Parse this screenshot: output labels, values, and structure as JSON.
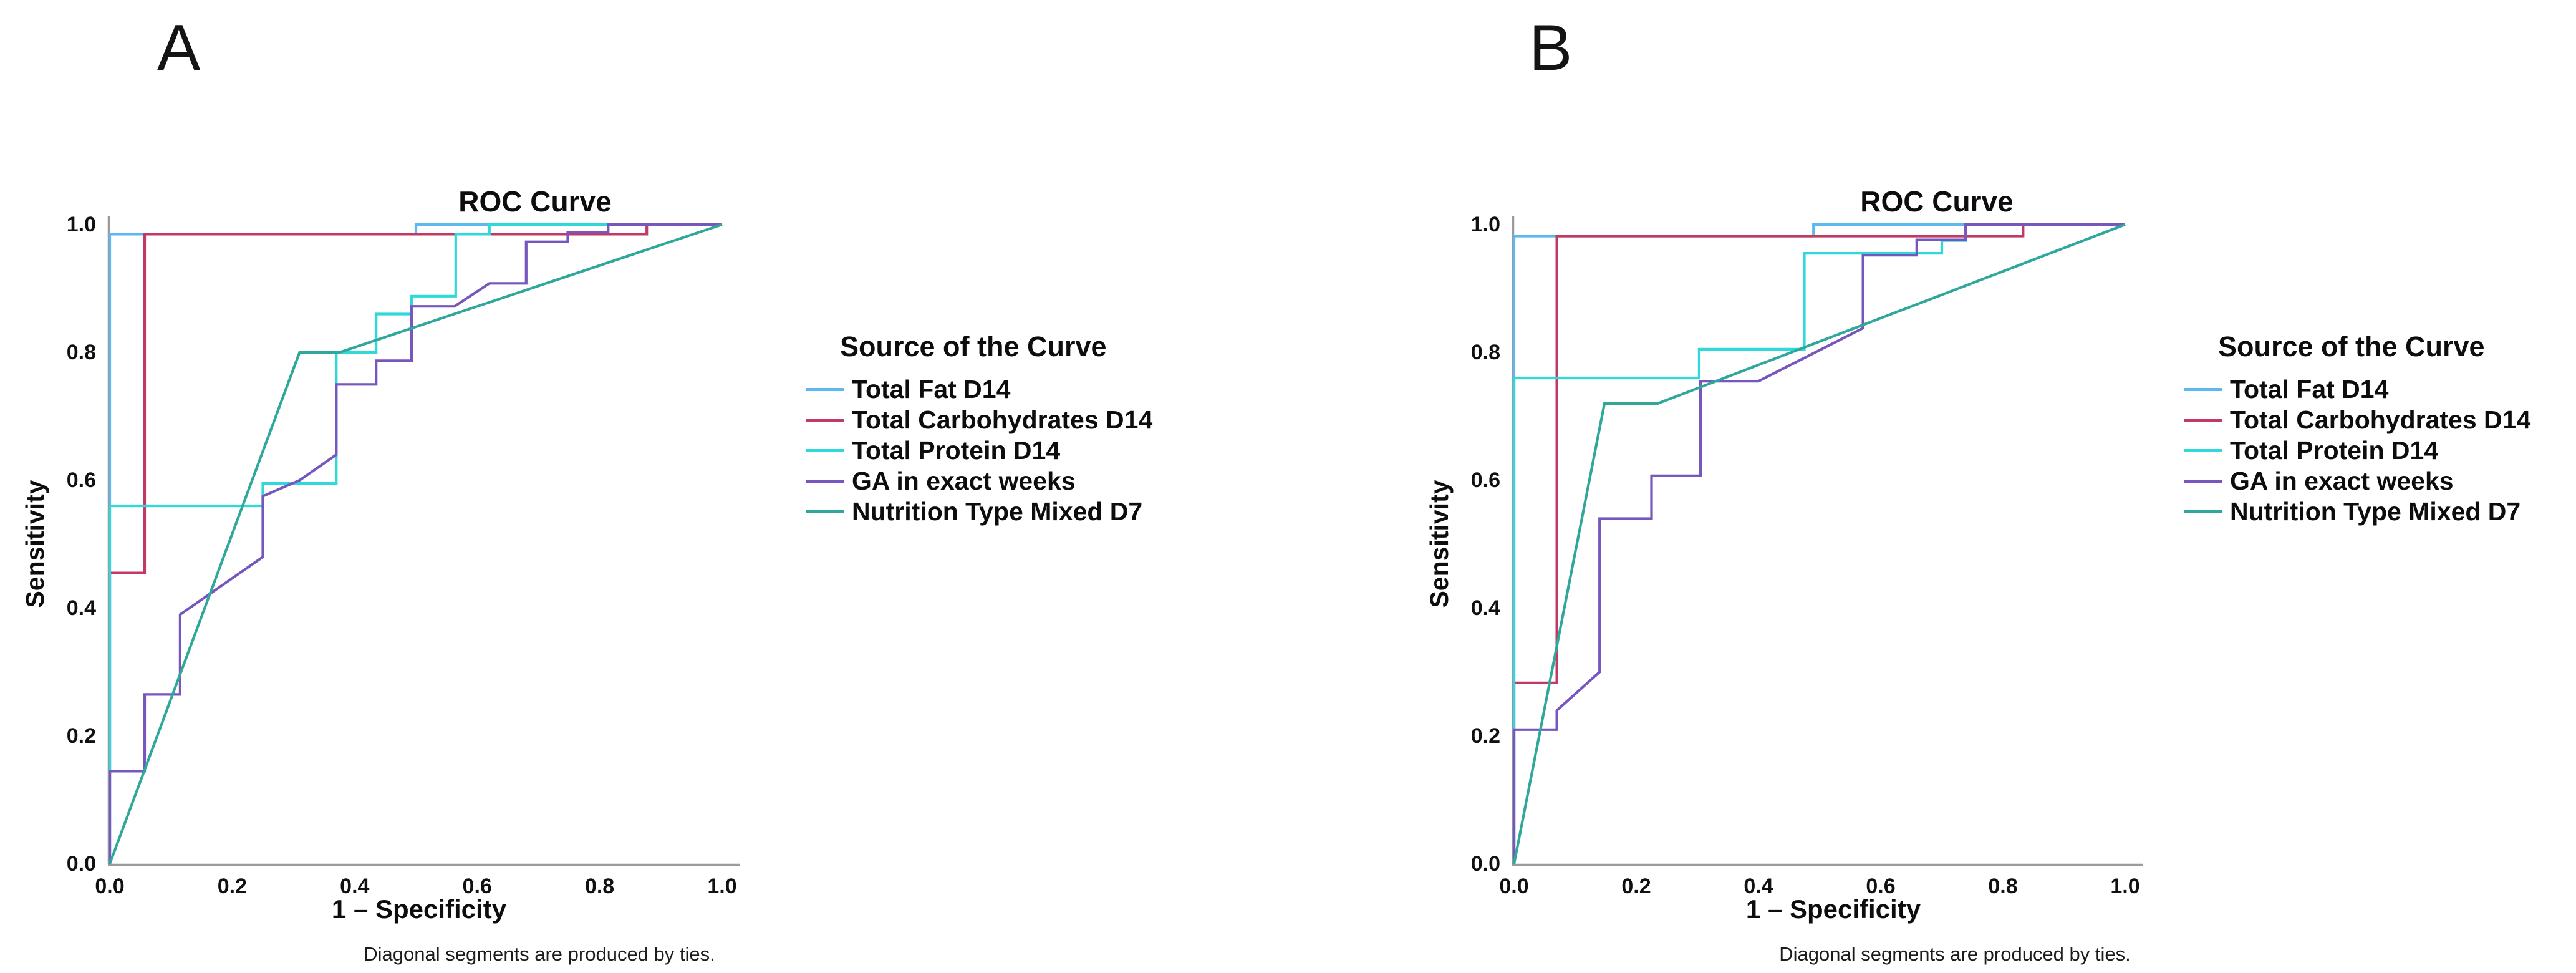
{
  "chart_data": [
    {
      "type": "line",
      "panel_label": "A",
      "title": "ROC Curve",
      "xlabel": "1 – Specificity",
      "ylabel": "Sensitivity",
      "footnote": "Diagonal segments are produced by ties.",
      "legend_title": "Source of the Curve",
      "legend_position": "right",
      "grid": false,
      "xlim": [
        0.0,
        1.0
      ],
      "ylim": [
        0.0,
        1.0
      ],
      "xticks": [
        "0.0",
        "0.2",
        "0.4",
        "0.6",
        "0.8",
        "1.0"
      ],
      "yticks": [
        "1.0",
        "0.8",
        "0.6",
        "0.4",
        "0.2",
        "0.0"
      ],
      "axis_color": "#9b9b9b",
      "series": [
        {
          "name": "Total Fat D14",
          "color": "#5cb8f0",
          "points": [
            [
              0,
              0
            ],
            [
              0,
              0.985
            ],
            [
              0.5,
              0.985
            ],
            [
              0.5,
              1
            ],
            [
              1,
              1
            ]
          ]
        },
        {
          "name": "Total Carbohydrates D14",
          "color": "#c13a64",
          "points": [
            [
              0,
              0
            ],
            [
              0,
              0.455
            ],
            [
              0.057,
              0.455
            ],
            [
              0.057,
              0.985
            ],
            [
              0.877,
              0.985
            ],
            [
              0.877,
              1
            ],
            [
              1,
              1
            ]
          ]
        },
        {
          "name": "Total Protein D14",
          "color": "#2fd9d9",
          "points": [
            [
              0,
              0
            ],
            [
              0,
              0.56
            ],
            [
              0.25,
              0.56
            ],
            [
              0.25,
              0.595
            ],
            [
              0.37,
              0.595
            ],
            [
              0.37,
              0.8
            ],
            [
              0.435,
              0.8
            ],
            [
              0.435,
              0.86
            ],
            [
              0.493,
              0.86
            ],
            [
              0.493,
              0.888
            ],
            [
              0.565,
              0.888
            ],
            [
              0.565,
              0.985
            ],
            [
              0.62,
              0.985
            ],
            [
              0.62,
              1
            ],
            [
              1,
              1
            ]
          ]
        },
        {
          "name": "GA in exact weeks",
          "color": "#7757bd",
          "points": [
            [
              0,
              0
            ],
            [
              0,
              0.145
            ],
            [
              0.057,
              0.145
            ],
            [
              0.057,
              0.265
            ],
            [
              0.115,
              0.265
            ],
            [
              0.115,
              0.39
            ],
            [
              0.25,
              0.48
            ],
            [
              0.25,
              0.575
            ],
            [
              0.31,
              0.6
            ],
            [
              0.37,
              0.64
            ],
            [
              0.37,
              0.75
            ],
            [
              0.435,
              0.75
            ],
            [
              0.435,
              0.787
            ],
            [
              0.493,
              0.787
            ],
            [
              0.493,
              0.872
            ],
            [
              0.563,
              0.872
            ],
            [
              0.62,
              0.908
            ],
            [
              0.68,
              0.908
            ],
            [
              0.68,
              0.973
            ],
            [
              0.748,
              0.973
            ],
            [
              0.748,
              0.988
            ],
            [
              0.814,
              0.988
            ],
            [
              0.814,
              1
            ],
            [
              1,
              1
            ]
          ]
        },
        {
          "name": "Nutrition Type Mixed D7",
          "color": "#2fa89b",
          "points": [
            [
              0,
              0
            ],
            [
              0.31,
              0.8
            ],
            [
              0.375,
              0.8
            ],
            [
              1,
              1
            ]
          ]
        }
      ]
    },
    {
      "type": "line",
      "panel_label": "B",
      "title": "ROC Curve",
      "xlabel": "1 – Specificity",
      "ylabel": "Sensitivity",
      "footnote": "Diagonal segments are produced by ties.",
      "legend_title": "Source of the Curve",
      "legend_position": "right",
      "grid": false,
      "xlim": [
        0.0,
        1.0
      ],
      "ylim": [
        0.0,
        1.0
      ],
      "xticks": [
        "0.0",
        "0.2",
        "0.4",
        "0.6",
        "0.8",
        "1.0"
      ],
      "yticks": [
        "1.0",
        "0.8",
        "0.6",
        "0.4",
        "0.2",
        "0.0"
      ],
      "axis_color": "#9b9b9b",
      "series": [
        {
          "name": "Total Fat D14",
          "color": "#5cb8f0",
          "points": [
            [
              0,
              0
            ],
            [
              0,
              0.982
            ],
            [
              0.49,
              0.982
            ],
            [
              0.49,
              1
            ],
            [
              1,
              1
            ]
          ]
        },
        {
          "name": "Total Carbohydrates D14",
          "color": "#c13a64",
          "points": [
            [
              0,
              0
            ],
            [
              0,
              0.283
            ],
            [
              0.07,
              0.283
            ],
            [
              0.07,
              0.982
            ],
            [
              0.833,
              0.982
            ],
            [
              0.833,
              1
            ],
            [
              1,
              1
            ]
          ]
        },
        {
          "name": "Total Protein D14",
          "color": "#2fd9d9",
          "points": [
            [
              0,
              0
            ],
            [
              0,
              0.76
            ],
            [
              0.303,
              0.76
            ],
            [
              0.303,
              0.805
            ],
            [
              0.475,
              0.805
            ],
            [
              0.475,
              0.955
            ],
            [
              0.7,
              0.955
            ],
            [
              0.7,
              0.975
            ],
            [
              0.739,
              0.975
            ],
            [
              0.739,
              1
            ],
            [
              1,
              1
            ]
          ]
        },
        {
          "name": "GA in exact weeks",
          "color": "#7757bd",
          "points": [
            [
              0,
              0
            ],
            [
              0,
              0.21
            ],
            [
              0.07,
              0.21
            ],
            [
              0.07,
              0.24
            ],
            [
              0.14,
              0.3
            ],
            [
              0.14,
              0.54
            ],
            [
              0.225,
              0.54
            ],
            [
              0.225,
              0.607
            ],
            [
              0.305,
              0.607
            ],
            [
              0.305,
              0.755
            ],
            [
              0.4,
              0.755
            ],
            [
              0.571,
              0.838
            ],
            [
              0.571,
              0.952
            ],
            [
              0.659,
              0.952
            ],
            [
              0.659,
              0.976
            ],
            [
              0.739,
              0.976
            ],
            [
              0.739,
              1
            ],
            [
              1,
              1
            ]
          ]
        },
        {
          "name": "Nutrition Type Mixed D7",
          "color": "#2fa89b",
          "points": [
            [
              0,
              0
            ],
            [
              0.148,
              0.72
            ],
            [
              0.235,
              0.72
            ],
            [
              1,
              1
            ]
          ]
        }
      ]
    }
  ]
}
